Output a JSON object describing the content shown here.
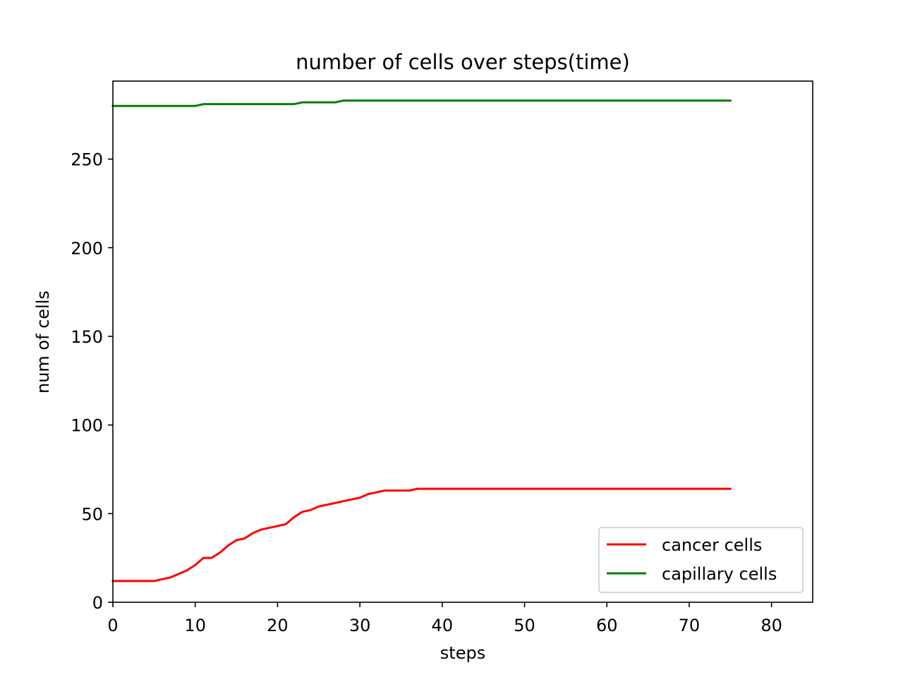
{
  "chart_data": {
    "type": "line",
    "title": "number of cells over steps(time)",
    "xlabel": "steps",
    "ylabel": "num of cells",
    "xlim": [
      0,
      85
    ],
    "ylim": [
      0,
      294
    ],
    "xticks": [
      0,
      10,
      20,
      30,
      40,
      50,
      60,
      70,
      80
    ],
    "yticks": [
      0,
      50,
      100,
      150,
      200,
      250
    ],
    "grid": false,
    "legend_position": "lower-right",
    "series": [
      {
        "name": "cancer cells",
        "color": "#ff0000",
        "x": [
          0,
          1,
          2,
          3,
          4,
          5,
          6,
          7,
          8,
          9,
          10,
          11,
          12,
          13,
          14,
          15,
          16,
          17,
          18,
          19,
          20,
          21,
          22,
          23,
          24,
          25,
          26,
          27,
          28,
          29,
          30,
          31,
          32,
          33,
          34,
          35,
          36,
          37,
          38,
          39,
          40,
          41,
          42,
          43,
          44,
          45,
          46,
          47,
          48,
          49,
          50,
          51,
          52,
          53,
          54,
          55,
          56,
          57,
          58,
          59,
          60,
          61,
          62,
          63,
          64,
          65,
          66,
          67,
          68,
          69,
          70,
          71,
          72,
          73,
          74,
          75
        ],
        "y": [
          12,
          12,
          12,
          12,
          12,
          12,
          13,
          14,
          16,
          18,
          21,
          25,
          25,
          28,
          32,
          35,
          36,
          39,
          41,
          42,
          43,
          44,
          48,
          51,
          52,
          54,
          55,
          56,
          57,
          58,
          59,
          61,
          62,
          63,
          63,
          63,
          63,
          64,
          64,
          64,
          64,
          64,
          64,
          64,
          64,
          64,
          64,
          64,
          64,
          64,
          64,
          64,
          64,
          64,
          64,
          64,
          64,
          64,
          64,
          64,
          64,
          64,
          64,
          64,
          64,
          64,
          64,
          64,
          64,
          64,
          64,
          64,
          64,
          64,
          64,
          64
        ]
      },
      {
        "name": "capillary cells",
        "color": "#008000",
        "x": [
          0,
          1,
          2,
          3,
          4,
          5,
          6,
          7,
          8,
          9,
          10,
          11,
          12,
          13,
          14,
          15,
          16,
          17,
          18,
          19,
          20,
          21,
          22,
          23,
          24,
          25,
          26,
          27,
          28,
          29,
          30,
          31,
          32,
          33,
          34,
          35,
          36,
          37,
          38,
          39,
          40,
          41,
          42,
          43,
          44,
          45,
          46,
          47,
          48,
          49,
          50,
          51,
          52,
          53,
          54,
          55,
          56,
          57,
          58,
          59,
          60,
          61,
          62,
          63,
          64,
          65,
          66,
          67,
          68,
          69,
          70,
          71,
          72,
          73,
          74,
          75
        ],
        "y": [
          280,
          280,
          280,
          280,
          280,
          280,
          280,
          280,
          280,
          280,
          280,
          281,
          281,
          281,
          281,
          281,
          281,
          281,
          281,
          281,
          281,
          281,
          281,
          282,
          282,
          282,
          282,
          282,
          283,
          283,
          283,
          283,
          283,
          283,
          283,
          283,
          283,
          283,
          283,
          283,
          283,
          283,
          283,
          283,
          283,
          283,
          283,
          283,
          283,
          283,
          283,
          283,
          283,
          283,
          283,
          283,
          283,
          283,
          283,
          283,
          283,
          283,
          283,
          283,
          283,
          283,
          283,
          283,
          283,
          283,
          283,
          283,
          283,
          283,
          283,
          283
        ]
      }
    ]
  }
}
